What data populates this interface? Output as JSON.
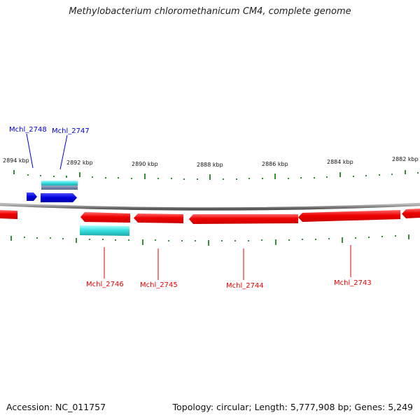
{
  "header": {
    "title": "Methylobacterium chloromethanicum CM4, complete genome"
  },
  "footer": {
    "accession": "Accession: NC_011757",
    "summary": "Topology: circular; Length: 5,777,908 bp; Genes: 5,249"
  },
  "axis": {
    "tick_labels": [
      "2894 kbp",
      "2892 kbp",
      "2890 kbp",
      "2888 kbp",
      "2886 kbp",
      "2884 kbp",
      "2882 kbp"
    ]
  },
  "genes": [
    {
      "name": "Mchl_2748",
      "strand": "forward",
      "color": "#0000dd"
    },
    {
      "name": "Mchl_2747",
      "strand": "forward",
      "color": "#0000dd"
    },
    {
      "name": "Mchl_2746",
      "strand": "reverse",
      "color": "#ee0000"
    },
    {
      "name": "Mchl_2745",
      "strand": "reverse",
      "color": "#ee0000"
    },
    {
      "name": "Mchl_2744",
      "strand": "reverse",
      "color": "#ee0000"
    },
    {
      "name": "Mchl_2743",
      "strand": "reverse",
      "color": "#ee0000"
    }
  ],
  "colors": {
    "forward_gene": "#0000dd",
    "reverse_gene": "#ee0000",
    "cds_feature": "#33dddd",
    "backbone": "#888888",
    "tick": "#007700"
  }
}
